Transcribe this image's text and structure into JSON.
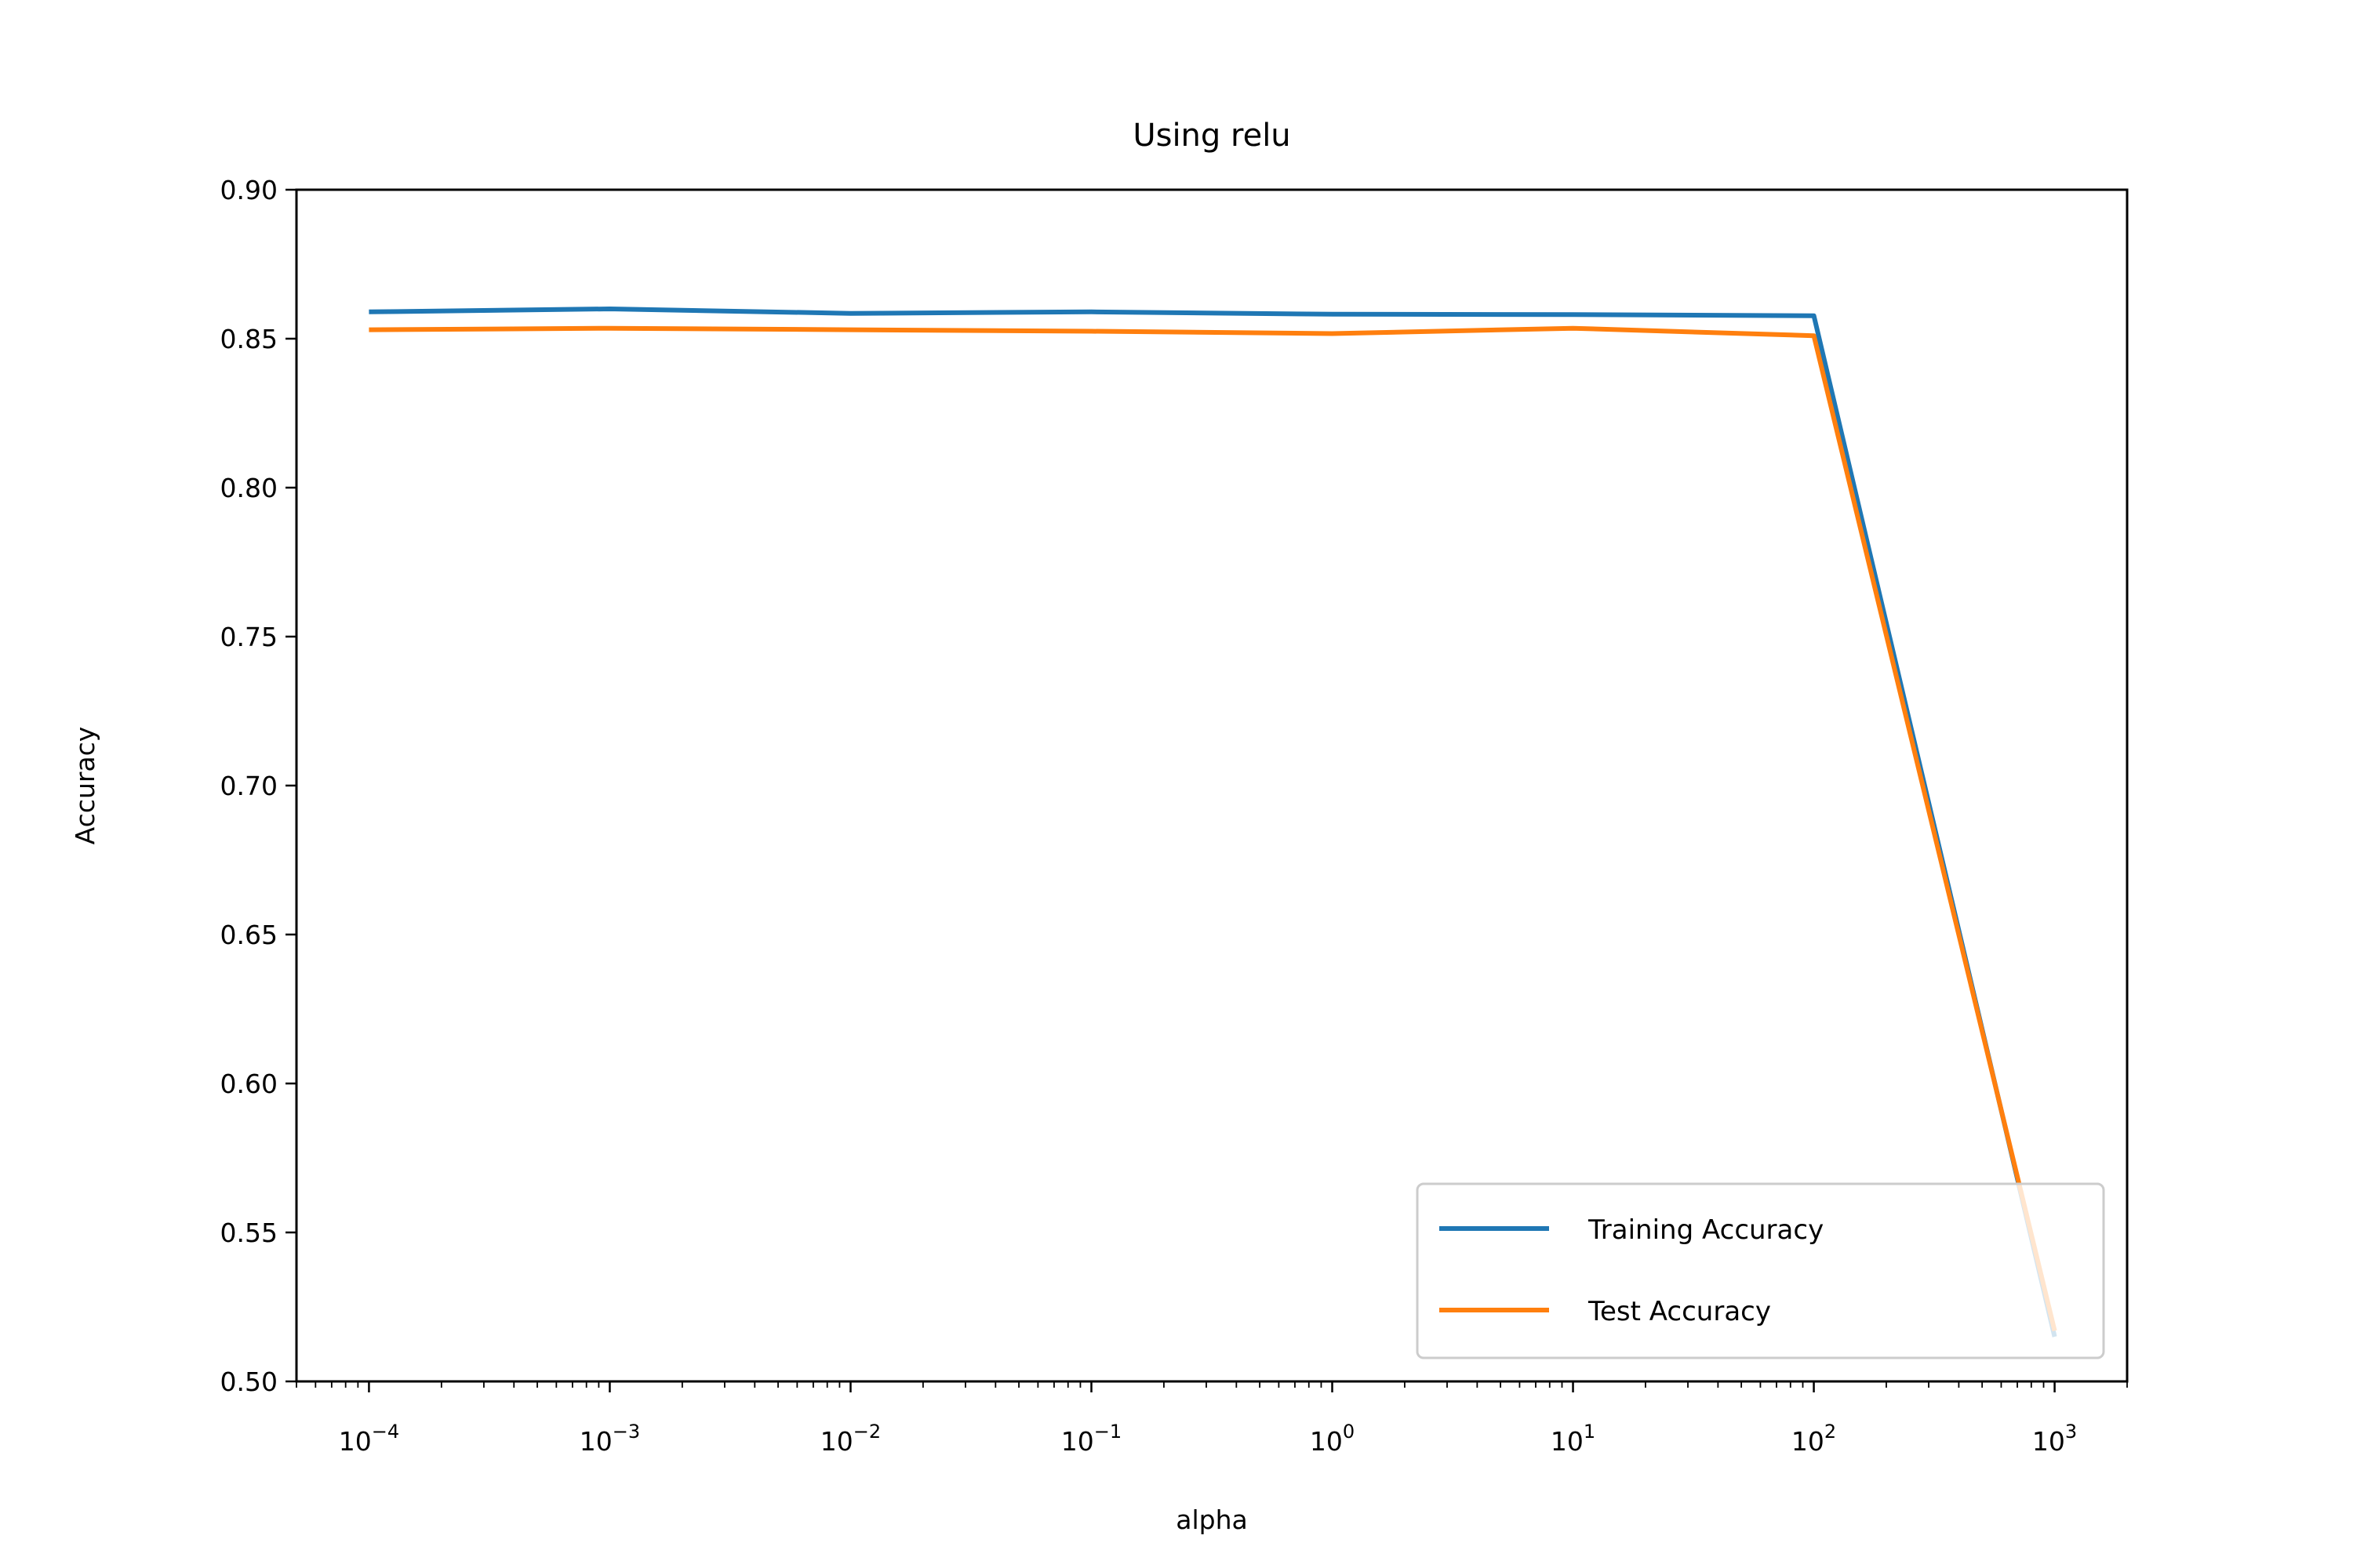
{
  "chart_data": {
    "type": "line",
    "title": "Using relu",
    "xlabel": "alpha",
    "ylabel": "Accuracy",
    "xscale": "log",
    "xlim": [
      5e-05,
      2000
    ],
    "ylim": [
      0.5,
      0.9
    ],
    "x": [
      0.0001,
      0.001,
      0.01,
      0.1,
      1,
      10,
      100,
      1000
    ],
    "xtick_labels": [
      {
        "value": 0.0001,
        "base": "10",
        "exp": "−4"
      },
      {
        "value": 0.001,
        "base": "10",
        "exp": "−3"
      },
      {
        "value": 0.01,
        "base": "10",
        "exp": "−2"
      },
      {
        "value": 0.1,
        "base": "10",
        "exp": "−1"
      },
      {
        "value": 1,
        "base": "10",
        "exp": "0"
      },
      {
        "value": 10,
        "base": "10",
        "exp": "1"
      },
      {
        "value": 100,
        "base": "10",
        "exp": "2"
      },
      {
        "value": 1000,
        "base": "10",
        "exp": "3"
      }
    ],
    "ytick_labels": [
      "0.50",
      "0.55",
      "0.60",
      "0.65",
      "0.70",
      "0.75",
      "0.80",
      "0.85",
      "0.90"
    ],
    "yticks": [
      0.5,
      0.55,
      0.6,
      0.65,
      0.7,
      0.75,
      0.8,
      0.85,
      0.9
    ],
    "grid": false,
    "legend_position": "lower-right",
    "series": [
      {
        "name": "Training Accuracy",
        "color": "#1f77b4",
        "values": [
          0.859,
          0.86,
          0.8585,
          0.859,
          0.8582,
          0.8581,
          0.8577,
          0.515
        ]
      },
      {
        "name": "Test Accuracy",
        "color": "#ff7f0e",
        "values": [
          0.853,
          0.8535,
          0.853,
          0.8525,
          0.8517,
          0.8535,
          0.851,
          0.517
        ]
      }
    ]
  }
}
